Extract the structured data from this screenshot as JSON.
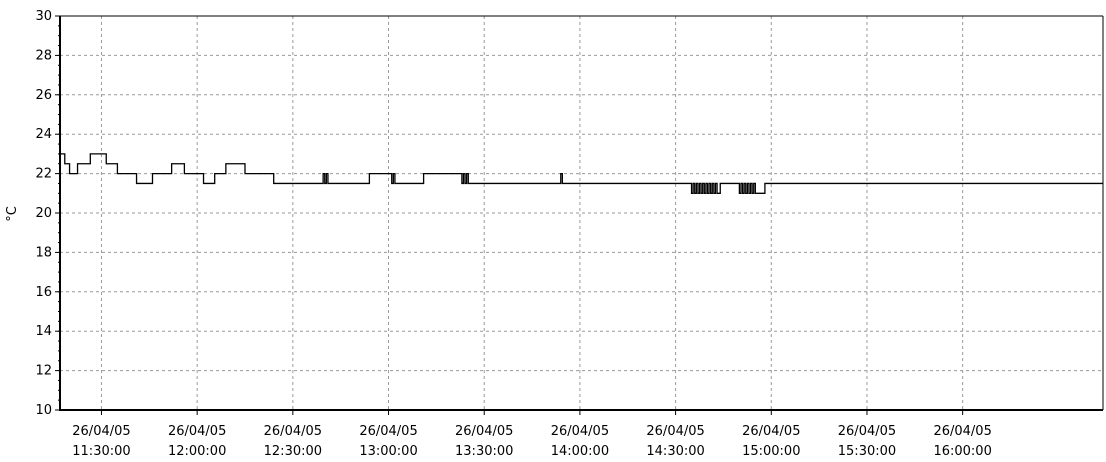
{
  "chart_data": {
    "type": "line",
    "title": "",
    "xlabel": "",
    "ylabel": "°C",
    "xlim": [
      "26/04/05 11:17:00",
      "26/04/05 16:44:00"
    ],
    "ylim": [
      10,
      30
    ],
    "y_ticks": [
      "10",
      "12",
      "14",
      "16",
      "18",
      "20",
      "22",
      "24",
      "26",
      "28",
      "30"
    ],
    "x_ticks": [
      {
        "date": "26/04/05",
        "time": "11:30:00"
      },
      {
        "date": "26/04/05",
        "time": "12:00:00"
      },
      {
        "date": "26/04/05",
        "time": "12:30:00"
      },
      {
        "date": "26/04/05",
        "time": "13:00:00"
      },
      {
        "date": "26/04/05",
        "time": "13:30:00"
      },
      {
        "date": "26/04/05",
        "time": "14:00:00"
      },
      {
        "date": "26/04/05",
        "time": "14:30:00"
      },
      {
        "date": "26/04/05",
        "time": "15:00:00"
      },
      {
        "date": "26/04/05",
        "time": "15:30:00"
      },
      {
        "date": "26/04/05",
        "time": "16:00:00"
      }
    ],
    "grid": true,
    "legend": "none",
    "series": [
      {
        "color": "#000000",
        "x": [
          "11:17:00",
          "11:18:30",
          "11:20:00",
          "11:22:30",
          "11:26:30",
          "11:31:30",
          "11:35:00",
          "11:41:00",
          "11:46:00",
          "11:52:00",
          "11:56:00",
          "12:02:00",
          "12:05:30",
          "12:09:00",
          "12:15:00",
          "12:24:00",
          "12:28:30",
          "12:32:00",
          "12:39:00",
          "12:39:30",
          "12:40:00",
          "12:40:30",
          "12:41:00",
          "12:54:00",
          "13:01:00",
          "13:01:30",
          "13:02:00",
          "13:11:00",
          "13:23:00",
          "13:23:30",
          "13:24:00",
          "13:24:30",
          "13:25:00",
          "13:54:00",
          "13:54:30",
          "13:55:00",
          "14:35:00",
          "14:35:30",
          "14:36:00",
          "14:36:30",
          "14:37:00",
          "14:37:30",
          "14:38:00",
          "14:38:30",
          "14:39:00",
          "14:39:30",
          "14:40:00",
          "14:40:30",
          "14:41:00",
          "14:41:30",
          "14:42:00",
          "14:42:30",
          "14:43:00",
          "14:44:00",
          "14:44:30",
          "14:50:00",
          "14:50:30",
          "14:51:00",
          "14:51:30",
          "14:52:00",
          "14:52:30",
          "14:53:00",
          "14:53:30",
          "14:54:00",
          "14:54:30",
          "14:55:00",
          "14:57:00",
          "14:58:00",
          "16:44:00"
        ],
        "y": [
          23,
          22.5,
          22,
          22.5,
          23,
          22.5,
          22,
          21.5,
          22,
          22.5,
          22,
          21.5,
          22,
          22.5,
          22,
          21.5,
          21.5,
          21.5,
          21.5,
          22,
          21.5,
          22,
          21.5,
          22,
          21.5,
          22,
          21.5,
          22,
          21.5,
          22,
          21.5,
          22,
          21.5,
          22,
          21.5,
          21.5,
          21,
          21.5,
          21,
          21.5,
          21,
          21.5,
          21,
          21.5,
          21,
          21.5,
          21,
          21.5,
          21,
          21.5,
          21,
          21.5,
          21,
          21.5,
          21.5,
          21,
          21.5,
          21,
          21.5,
          21,
          21.5,
          21,
          21.5,
          21,
          21.5,
          21,
          21,
          21.5,
          21.5
        ]
      }
    ]
  }
}
